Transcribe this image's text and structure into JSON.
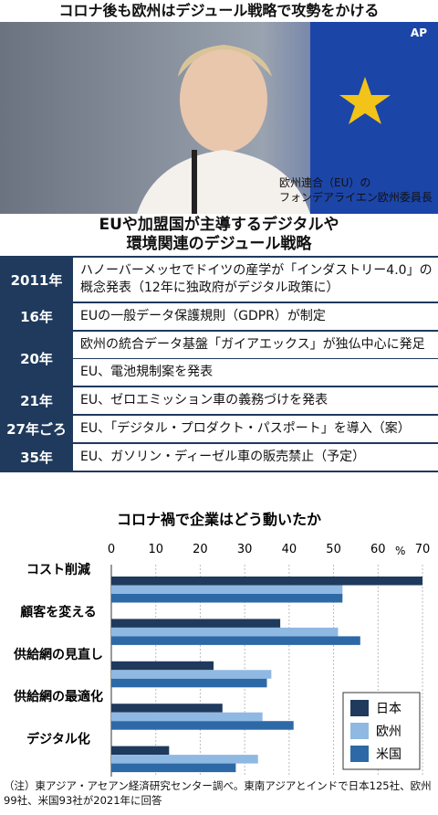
{
  "header": {
    "title": "コロナ後も欧州はデジュール戦略で攻勢をかける"
  },
  "photo": {
    "credit": "AP",
    "caption": [
      "欧州連合（EU）の",
      "フォンデアライエン欧州委員長"
    ]
  },
  "table": {
    "title": [
      "EUや加盟国が主導するデジタルや",
      "環境関連のデジュール戦略"
    ],
    "rows": [
      {
        "year": "2011年",
        "items": [
          "ハノーバーメッセでドイツの産学が「インダストリー4.0」の概念発表（12年に独政府がデジタル政策に）"
        ]
      },
      {
        "year": "16年",
        "items": [
          "EUの一般データ保護規則（GDPR）が制定"
        ]
      },
      {
        "year": "20年",
        "items": [
          "欧州の統合データ基盤「ガイアエックス」が独仏中心に発足",
          "EU、電池規制案を発表"
        ]
      },
      {
        "year": "21年",
        "items": [
          "EU、ゼロエミッション車の義務づけを発表"
        ]
      },
      {
        "year": "27年ごろ",
        "items": [
          "EU、「デジタル・プロダクト・パスポート」を導入（案）"
        ]
      },
      {
        "year": "35年",
        "items": [
          "EU、ガソリン・ディーゼル車の販売禁止（予定）"
        ]
      }
    ]
  },
  "chart_data": {
    "type": "hbar",
    "title": "コロナ禍で企業はどう動いたか",
    "xlabel": "%",
    "categories": [
      "コスト削減",
      "顧客を変える",
      "供給網の見直し",
      "供給網の最適化",
      "デジタル化"
    ],
    "series": [
      {
        "name": "日本",
        "color": "#1f3a5c",
        "values": [
          70,
          38,
          23,
          25,
          13
        ]
      },
      {
        "name": "欧州",
        "color": "#8fb9e2",
        "values": [
          52,
          51,
          36,
          34,
          33
        ]
      },
      {
        "name": "米国",
        "color": "#2d69a6",
        "values": [
          52,
          56,
          35,
          41,
          28
        ]
      }
    ],
    "xlim": [
      0,
      70
    ],
    "xticks": [
      0,
      10,
      20,
      30,
      40,
      50,
      60,
      70
    ],
    "grid": true,
    "legend": "bottom-right"
  },
  "note": "（注）東アジア・アセアン経済研究センター調べ。東南アジアとインドで日本125社、欧州99社、米国93社が2021年に回答"
}
